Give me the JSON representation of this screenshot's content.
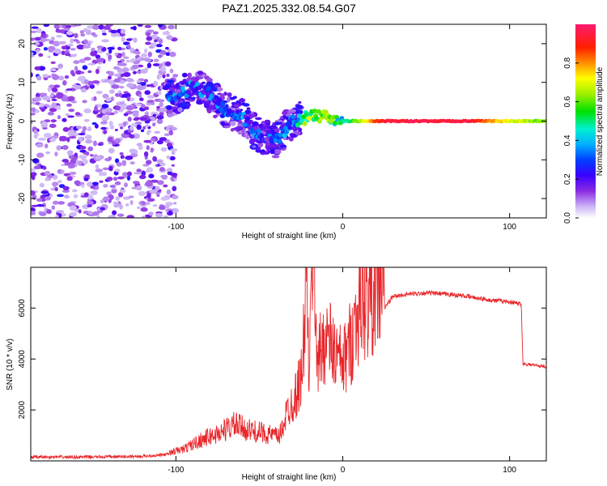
{
  "title": "PAZ1.2025.332.08.54.G07",
  "chart_data": [
    {
      "type": "heatmap",
      "name": "spectrogram",
      "xlabel": "Height of straight line (km)",
      "ylabel": "Frequency (Hz)",
      "xlim": [
        -187,
        122
      ],
      "ylim": [
        -25,
        25
      ],
      "xticks": [
        -100,
        0,
        100
      ],
      "yticks": [
        -20,
        -10,
        0,
        10,
        20
      ],
      "colorbar": {
        "label": "Normalized spectral amplitude",
        "range": [
          0,
          1
        ],
        "ticks": [
          0.0,
          0.2,
          0.4,
          0.6,
          0.8
        ]
      },
      "ridge": [
        {
          "x": -100,
          "freq": 6,
          "amp": 0.3
        },
        {
          "x": -90,
          "freq": 9,
          "amp": 0.3
        },
        {
          "x": -80,
          "freq": 7,
          "amp": 0.3
        },
        {
          "x": -70,
          "freq": 3,
          "amp": 0.3
        },
        {
          "x": -60,
          "freq": 1,
          "amp": 0.3
        },
        {
          "x": -50,
          "freq": -4,
          "amp": 0.25
        },
        {
          "x": -40,
          "freq": -5,
          "amp": 0.25
        },
        {
          "x": -30,
          "freq": 0,
          "amp": 0.35
        },
        {
          "x": -20,
          "freq": 1,
          "amp": 0.6
        },
        {
          "x": -10,
          "freq": 1.5,
          "amp": 0.6
        },
        {
          "x": 0,
          "freq": 0,
          "amp": 0.45
        },
        {
          "x": 25,
          "freq": 0,
          "amp": 0.95
        },
        {
          "x": 50,
          "freq": 0,
          "amp": 0.95
        },
        {
          "x": 75,
          "freq": 0,
          "amp": 0.95
        },
        {
          "x": 100,
          "freq": 0,
          "amp": 0.7
        },
        {
          "x": 122,
          "freq": 0,
          "amp": 0.6
        }
      ]
    },
    {
      "type": "line",
      "name": "snr",
      "xlabel": "Height of straight line (km)",
      "ylabel": "SNR (10 * v/v)",
      "xlim": [
        -187,
        122
      ],
      "ylim": [
        0,
        7600
      ],
      "xticks": [
        -100,
        0,
        100
      ],
      "yticks": [
        2000,
        4000,
        6000
      ],
      "color": "#e8262a",
      "series": [
        {
          "name": "SNR",
          "x": [
            -187,
            -160,
            -140,
            -120,
            -105,
            -95,
            -85,
            -75,
            -65,
            -55,
            -45,
            -38,
            -33,
            -28,
            -24,
            -22,
            -20,
            -18,
            -15,
            -10,
            -5,
            0,
            5,
            10,
            15,
            20,
            25,
            30,
            40,
            50,
            60,
            70,
            80,
            90,
            100,
            107,
            108,
            110,
            122
          ],
          "y": [
            150,
            150,
            160,
            180,
            250,
            400,
            700,
            900,
            1200,
            1000,
            900,
            800,
            1700,
            2200,
            3000,
            6500,
            2500,
            7600,
            3300,
            4200,
            3600,
            3200,
            4000,
            5200,
            5400,
            5700,
            6000,
            6450,
            6550,
            6600,
            6550,
            6500,
            6400,
            6300,
            6250,
            6150,
            3800,
            3800,
            3700
          ]
        }
      ]
    }
  ]
}
